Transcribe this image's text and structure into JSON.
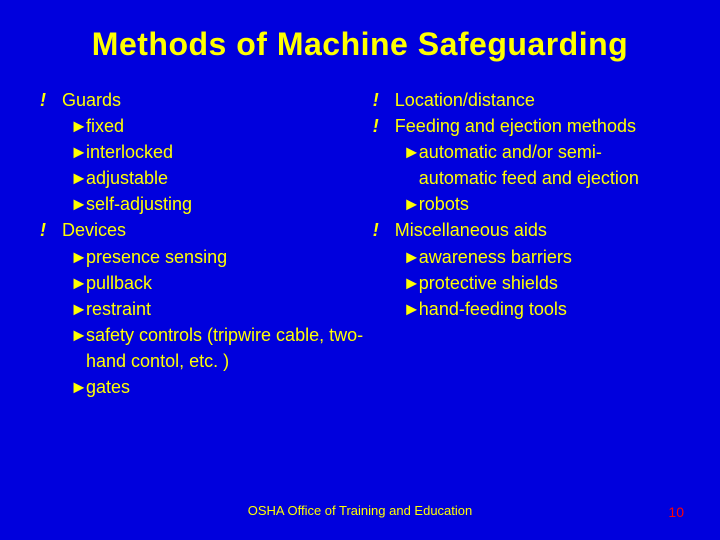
{
  "colors": {
    "background": "#0000dd",
    "text": "#ffff00",
    "title": "#ffff00",
    "page_number": "#ff0000"
  },
  "title": "Methods of Machine Safeguarding",
  "bullet_l1": "!",
  "bullet_l2": "►",
  "left": [
    {
      "level": 1,
      "text": "Guards"
    },
    {
      "level": 2,
      "text": "fixed"
    },
    {
      "level": 2,
      "text": "interlocked"
    },
    {
      "level": 2,
      "text": "adjustable"
    },
    {
      "level": 2,
      "text": "self-adjusting"
    },
    {
      "level": 1,
      "text": "Devices"
    },
    {
      "level": 2,
      "text": "presence sensing"
    },
    {
      "level": 2,
      "text": "pullback"
    },
    {
      "level": 2,
      "text": "restraint"
    },
    {
      "level": 2,
      "text": "safety controls (tripwire cable, two-hand contol, etc. )"
    },
    {
      "level": 2,
      "text": "gates"
    }
  ],
  "right": [
    {
      "level": 1,
      "text": "Location/distance"
    },
    {
      "level": 1,
      "text": "Feeding and ejection methods"
    },
    {
      "level": 2,
      "text": "automatic and/or semi-automatic feed and ejection"
    },
    {
      "level": 2,
      "text": "robots"
    },
    {
      "level": 1,
      "text": "Miscellaneous aids"
    },
    {
      "level": 2,
      "text": "awareness barriers"
    },
    {
      "level": 2,
      "text": "protective shields"
    },
    {
      "level": 2,
      "text": "hand-feeding tools"
    }
  ],
  "footer": "OSHA Office of Training and Education",
  "page_number": "10"
}
